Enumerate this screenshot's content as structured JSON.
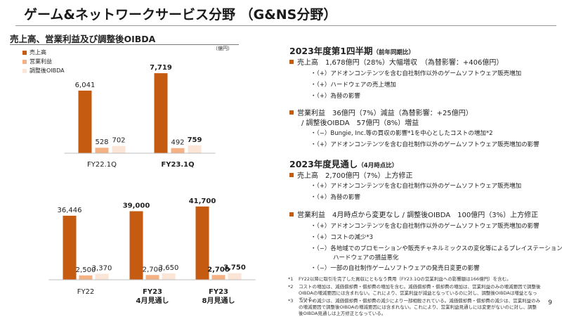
{
  "header": {
    "title": "ゲーム&ネットワークサービス分野 （G&NS分野）"
  },
  "chart_section": {
    "title": "売上高、営業利益及び調整後OIBDA",
    "unit": "（億円）",
    "legend": [
      "売上高",
      "営業利益",
      "調整後OIBDA"
    ]
  },
  "colors": {
    "sales": "#c55a11",
    "op_income": "#f4b183",
    "oibda": "#fbe5d6",
    "accent": "#c55a11"
  },
  "chart_data": [
    {
      "type": "bar",
      "categories": [
        "FY22.1Q",
        "FY23.1Q"
      ],
      "series": [
        {
          "name": "売上高",
          "values": [
            6041,
            7719
          ]
        },
        {
          "name": "営業利益",
          "values": [
            528,
            492
          ]
        },
        {
          "name": "調整後OIBDA",
          "values": [
            702,
            759
          ]
        }
      ],
      "value_labels": [
        [
          "6,041",
          "528",
          "702"
        ],
        [
          "7,719",
          "492",
          "759"
        ]
      ],
      "bold_categories": [
        false,
        true
      ],
      "ylim": [
        0,
        8000
      ]
    },
    {
      "type": "bar",
      "categories": [
        "FY22",
        "FY23\n4月見通し",
        "FY23\n8月見通し"
      ],
      "series": [
        {
          "name": "売上高",
          "values": [
            36446,
            39000,
            41700
          ]
        },
        {
          "name": "営業利益",
          "values": [
            2500,
            2700,
            2700
          ]
        },
        {
          "name": "調整後OIBDA",
          "values": [
            3370,
            3650,
            3750
          ]
        }
      ],
      "value_labels": [
        [
          "36,446",
          "2,500",
          "3,370"
        ],
        [
          "39,000",
          "2,700",
          "3,650"
        ],
        [
          "41,700",
          "2,700",
          "3,750"
        ]
      ],
      "bold_categories": [
        false,
        true,
        true
      ],
      "ylim": [
        0,
        42000
      ]
    }
  ],
  "q1": {
    "heading": "2023年度第1四半期",
    "heading_note": "（前年同期比）",
    "sales_line": "売上高　1,678億円（28%）大幅増収　（為替影響：+406億円）",
    "sales_items": [
      "（+）アドオンコンテンツを含む自社制作以外のゲームソフトウェア販売増加",
      "（+）ハードウェアの売上増加",
      "（+）為替の影響"
    ],
    "op_line": "営業利益　36億円（7%）減益（為替影響：+25億円）",
    "op_line2": "/ 調整後OIBDA　57億円（8%）増益",
    "op_items": [
      "（−）Bungie, Inc.等の買収の影響*1を中心としたコストの増加*2",
      "（+）アドオンコンテンツを含む自社制作以外のゲームソフトウェア販売増加の影響"
    ]
  },
  "fy": {
    "heading": "2023年度見通し",
    "heading_note": "（4月時点比）",
    "sales_line": "売上高　2,700億円（7%）上方修正",
    "sales_items": [
      "（+）アドオンコンテンツを含む自社制作以外のゲームソフトウェア販売増加",
      "（+）為替の影響"
    ],
    "op_line": "営業利益　4月時点から変更なし / 調整後OIBDA　100億円（3%）上方修正",
    "op_items": [
      "（+）アドオンコンテンツを含む自社制作以外のゲームソフトウェア販売増加の影響",
      "（+）コストの減少*3",
      "（−）各地域でのプロモーションや販売チャネルミックスの変化等によるプレイステーション®5",
      "ハードウェアの損益悪化",
      "（−）一部の自社制作ゲームソフトウェアの発売日変更の影響"
    ]
  },
  "footnotes": [
    {
      "num": "*1",
      "text": "FY22以降に取引を完了した買収にともなう費用（FY23.1Qの営業利益への影響額は166億円）を含む。"
    },
    {
      "num": "*2",
      "text": "コストの増加は、減価償却費・償却費の増加を含む。減価償却費・償却費の増加は、営業利益のみの増減要因で調整後OIBDAの増減要因には含まれない。これにより、営業利益が減益となっているのに対し、調整後OIBDAは増益となっている。"
    },
    {
      "num": "*3",
      "text": "コストの減少は、減価償却費・償却費の減少により一部相殺されている。減価償却費・償却費の減少は、営業利益のみの増減要因で調整後OIBDAの増減要因には含まれない。これにより、営業利益見通しには変更がないのに対し、調整後OIBDA見通しは上方修正となっている。"
    }
  ],
  "page": {
    "number": "9"
  }
}
